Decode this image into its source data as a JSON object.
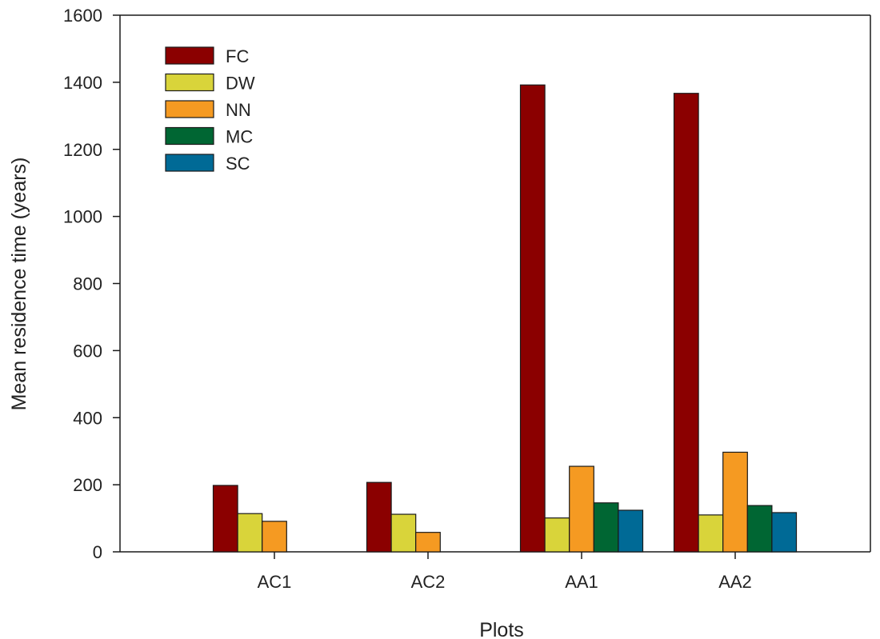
{
  "chart_data": {
    "type": "bar",
    "title": "",
    "xlabel": "Plots",
    "ylabel": "Mean residence time (years)",
    "ylim": [
      0,
      1600
    ],
    "yticks": [
      0,
      200,
      400,
      600,
      800,
      1000,
      1200,
      1400,
      1600
    ],
    "categories": [
      "AC1",
      "AC2",
      "AA1",
      "AA2"
    ],
    "series": [
      {
        "name": "FC",
        "color": "#8b0000",
        "values": [
          198,
          207,
          1392,
          1367
        ]
      },
      {
        "name": "DW",
        "color": "#d9d43a",
        "values": [
          114,
          112,
          101,
          110
        ]
      },
      {
        "name": "NN",
        "color": "#f59a22",
        "values": [
          91,
          58,
          255,
          297
        ]
      },
      {
        "name": "MC",
        "color": "#006633",
        "values": [
          null,
          null,
          146,
          138
        ]
      },
      {
        "name": "SC",
        "color": "#006a96",
        "values": [
          null,
          null,
          124,
          117
        ]
      }
    ],
    "legend_position": "top-left",
    "grid": false
  }
}
